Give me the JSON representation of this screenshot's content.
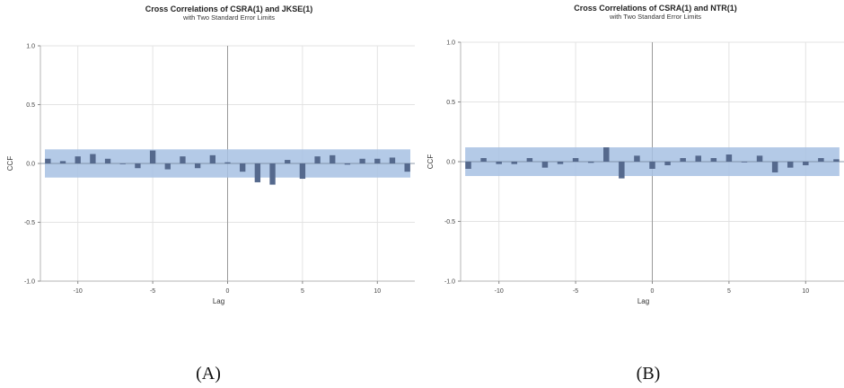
{
  "chart_data": [
    {
      "type": "bar",
      "title": "Cross Correlations of CSRA(1) and JKSE(1)",
      "subtitle": "with Two Standard Error Limits",
      "xlabel": "Lag",
      "ylabel": "CCF",
      "xlim": [
        -12.5,
        12.5
      ],
      "ylim": [
        -1.0,
        1.0
      ],
      "xticks": [
        "-10",
        "-5",
        "0",
        "5",
        "10"
      ],
      "yticks": [
        "1.0",
        "0.5",
        "0.0",
        "-0.5",
        "-1.0"
      ],
      "standard_error_limit": 0.12,
      "grid": true,
      "x": [
        -12,
        -11,
        -10,
        -9,
        -8,
        -7,
        -6,
        -5,
        -4,
        -3,
        -2,
        -1,
        0,
        1,
        2,
        3,
        4,
        5,
        6,
        7,
        8,
        9,
        10,
        11,
        12
      ],
      "values": [
        0.04,
        0.02,
        0.06,
        0.08,
        0.04,
        0.0,
        -0.04,
        0.11,
        -0.05,
        0.06,
        -0.04,
        0.07,
        0.01,
        -0.07,
        -0.16,
        -0.18,
        0.03,
        -0.13,
        0.06,
        0.07,
        -0.01,
        0.04,
        0.04,
        0.05,
        -0.07
      ],
      "panel_label": "(A)"
    },
    {
      "type": "bar",
      "title": "Cross Correlations of CSRA(1) and NTR(1)",
      "subtitle": "with Two Standard Error Limits",
      "xlabel": "Lag",
      "ylabel": "CCF",
      "xlim": [
        -12.5,
        12.5
      ],
      "ylim": [
        -1.0,
        1.0
      ],
      "xticks": [
        "-10",
        "-5",
        "0",
        "5",
        "10"
      ],
      "yticks": [
        "1.0",
        "0.5",
        "0.0",
        "-0.5",
        "-1.0"
      ],
      "standard_error_limit": 0.12,
      "grid": true,
      "x": [
        -12,
        -11,
        -10,
        -9,
        -8,
        -7,
        -6,
        -5,
        -4,
        -3,
        -2,
        -1,
        0,
        1,
        2,
        3,
        4,
        5,
        6,
        7,
        8,
        9,
        10,
        11,
        12
      ],
      "values": [
        -0.06,
        0.03,
        -0.02,
        -0.02,
        0.03,
        -0.05,
        -0.02,
        0.03,
        -0.01,
        0.12,
        -0.14,
        0.05,
        -0.06,
        -0.03,
        0.03,
        0.05,
        0.03,
        0.06,
        0.0,
        0.05,
        -0.09,
        -0.05,
        -0.03,
        0.03,
        0.02
      ],
      "panel_label": "(B)"
    }
  ]
}
